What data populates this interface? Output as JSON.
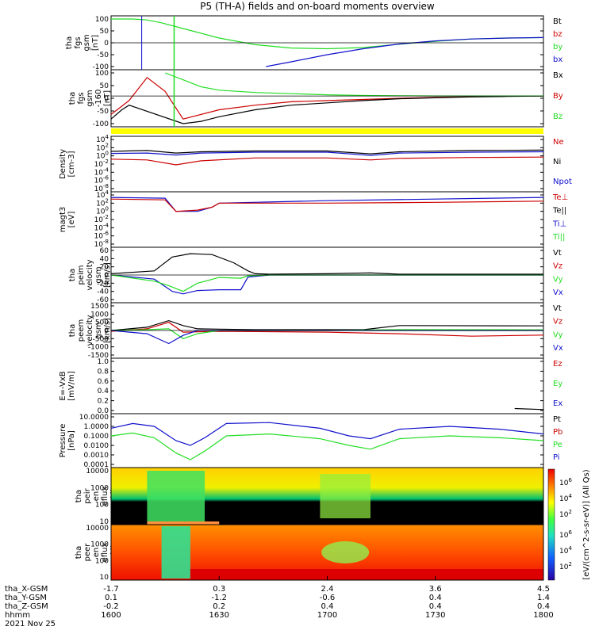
{
  "title": "P5 (TH-A) fields and on-board moments overview",
  "colors": {
    "black": "#000000",
    "red": "#cc0000",
    "green": "#22dd22",
    "blue": "#1010cc",
    "yellow": "#ffff00"
  },
  "panels": [
    {
      "id": "fgs_dsl",
      "ylabel_lines": [
        "tha",
        "fgs",
        "gsm",
        "[nT]"
      ],
      "yticks": [
        "100",
        "50",
        "0",
        "-50",
        "-100"
      ],
      "legend": [
        {
          "text": "Bt",
          "color": "black"
        },
        {
          "text": "bz",
          "color": "red"
        },
        {
          "text": "by",
          "color": "green"
        },
        {
          "text": "bx",
          "color": "blue"
        }
      ]
    },
    {
      "id": "fgs_gsm",
      "ylabel_lines": [
        "tha",
        "fgs",
        "gsm",
        "-160",
        "[nT]"
      ],
      "yticks": [
        "100",
        "50",
        "0",
        "-50",
        "-100"
      ],
      "legend": [
        {
          "text": "Bx",
          "color": "black"
        },
        {
          "text": "By",
          "color": "red"
        },
        {
          "text": "Bz",
          "color": "green"
        }
      ]
    },
    {
      "id": "density",
      "ylabel_lines": [
        "Density",
        "[cm-3]"
      ],
      "yticks": [
        "10^4",
        "10^2",
        "10^0",
        "10^-2",
        "10^-4",
        "10^-6",
        "10^-8"
      ],
      "legend": [
        {
          "text": "Ne",
          "color": "red"
        },
        {
          "text": "Ni",
          "color": "black"
        },
        {
          "text": "Npot",
          "color": "blue"
        }
      ]
    },
    {
      "id": "temperature",
      "ylabel_lines": [
        "magt3",
        "[eV]"
      ],
      "yticks": [
        "10^4",
        "10^2",
        "10^0",
        "10^-2",
        "10^-4",
        "10^-6",
        "10^-8"
      ],
      "legend": [
        {
          "text": "Te⊥",
          "color": "red"
        },
        {
          "text": "Te||",
          "color": "black"
        },
        {
          "text": "Ti⊥",
          "color": "blue"
        },
        {
          "text": "Ti||",
          "color": "green"
        }
      ]
    },
    {
      "id": "vel_peim",
      "ylabel_lines": [
        "tha",
        "peim",
        "velocity",
        "gsm",
        "[km/s]"
      ],
      "yticks": [
        "60",
        "40",
        "20",
        "0",
        "-20",
        "-40",
        "-60"
      ],
      "legend": [
        {
          "text": "Vt",
          "color": "black"
        },
        {
          "text": "Vz",
          "color": "red"
        },
        {
          "text": "Vy",
          "color": "green"
        },
        {
          "text": "Vx",
          "color": "blue"
        }
      ]
    },
    {
      "id": "vel_peem",
      "ylabel_lines": [
        "tha",
        "peem",
        "velocity",
        "gsm",
        "[km/s]"
      ],
      "yticks": [
        "1500",
        "1000",
        "500",
        "0",
        "-500",
        "-1000",
        "-1500"
      ],
      "legend": [
        {
          "text": "Vt",
          "color": "black"
        },
        {
          "text": "Vz",
          "color": "red"
        },
        {
          "text": "Vy",
          "color": "green"
        },
        {
          "text": "Vx",
          "color": "blue"
        }
      ]
    },
    {
      "id": "efield",
      "ylabel_lines": [
        "E=-VxB",
        "[mV/m]"
      ],
      "yticks": [
        "1.0",
        "0.8",
        "0.6",
        "0.4",
        "0.2",
        "0.0"
      ],
      "legend": [
        {
          "text": "Ez",
          "color": "red"
        },
        {
          "text": "Ey",
          "color": "green"
        },
        {
          "text": "Ex",
          "color": "blue"
        }
      ]
    },
    {
      "id": "pressure",
      "ylabel_lines": [
        "Pressure",
        "[nPa]"
      ],
      "yticks": [
        "10.0000",
        "1.0000",
        "0.1000",
        "0.0100",
        "0.0010",
        "0.0001"
      ],
      "legend": [
        {
          "text": "Pt",
          "color": "black"
        },
        {
          "text": "Pb",
          "color": "red"
        },
        {
          "text": "Pe",
          "color": "green"
        },
        {
          "text": "Pi",
          "color": "blue"
        }
      ]
    },
    {
      "id": "peir",
      "ylabel_lines": [
        "tha",
        "peir",
        "en",
        "eflux",
        "eV/",
        "(cm2-s-",
        "sr-eV)"
      ],
      "yticks": [
        "10000",
        "1000",
        "100",
        "10"
      ],
      "legend": []
    },
    {
      "id": "peer",
      "ylabel_lines": [
        "tha",
        "peer",
        "en",
        "eflux",
        "eV/",
        "(cm2-s-",
        "sr-eV)"
      ],
      "yticks": [
        "10000",
        "1000",
        "100",
        "10"
      ],
      "legend": []
    }
  ],
  "colorbar": {
    "label": "[eV/(cm^2-s-sr-eV)] (All Qs)",
    "ticks_upper": [
      "10^6",
      "10^4",
      "10^2"
    ],
    "ticks_lower": [
      "10^6",
      "10^4",
      "10^2"
    ]
  },
  "xaxis": {
    "rows": [
      {
        "label": "tha_X-GSM",
        "values": [
          "-1.7",
          "0.3",
          "2.4",
          "3.6",
          "4.5"
        ]
      },
      {
        "label": "tha_Y-GSM",
        "values": [
          "0.1",
          "-1.2",
          "-0.6",
          "0.4",
          "1.4"
        ]
      },
      {
        "label": "tha_Z-GSM",
        "values": [
          "-0.2",
          "0.2",
          "0.4",
          "0.4",
          "0.4"
        ]
      },
      {
        "label": "hhmm",
        "values": [
          "1600",
          "1630",
          "1700",
          "1730",
          "1800"
        ]
      }
    ],
    "date": "2021 Nov 25"
  },
  "chart_data": {
    "type": "line",
    "title": "P5 (TH-A) fields and on-board moments overview",
    "time_ticks": [
      "1600",
      "1630",
      "1700",
      "1730",
      "1800"
    ],
    "panels": [
      {
        "name": "fgs",
        "ylim": [
          -100,
          100
        ],
        "series": [
          {
            "name": "by",
            "x": [
              0,
              6,
              10,
              14,
              20,
              30,
              40,
              50,
              60,
              70,
              80,
              90,
              100,
              110,
              120
            ],
            "y": [
              100,
              100,
              96,
              84,
              60,
              20,
              -8,
              -22,
              -25,
              -20,
              -6,
              6,
              16,
              20,
              22
            ]
          },
          {
            "name": "bx",
            "x": [
              43,
              50,
              60,
              70,
              80,
              90,
              100,
              110,
              120
            ],
            "y": [
              -100,
              -80,
              -50,
              -25,
              -5,
              8,
              16,
              20,
              22
            ]
          }
        ]
      },
      {
        "name": "fgs_gsm",
        "ylim": [
          -120,
          100
        ],
        "series": [
          {
            "name": "By",
            "x": [
              0,
              5,
              10,
              15,
              20,
              30,
              40,
              50,
              60,
              70,
              80,
              90,
              100,
              110,
              120
            ],
            "y": [
              -80,
              -20,
              80,
              20,
              -100,
              -60,
              -40,
              -25,
              -20,
              -15,
              -10,
              -6,
              -3,
              -1,
              0
            ]
          },
          {
            "name": "Bx",
            "x": [
              0,
              3,
              5,
              20,
              25,
              30,
              40,
              50,
              60,
              70,
              80,
              90,
              100,
              110,
              120
            ],
            "y": [
              -100,
              -60,
              -40,
              -120,
              -110,
              -90,
              -60,
              -40,
              -30,
              -20,
              -12,
              -8,
              -4,
              -2,
              0
            ]
          },
          {
            "name": "Bz",
            "x": [
              15,
              20,
              25,
              30,
              40,
              50,
              60,
              70,
              80,
              90,
              100,
              110,
              120
            ],
            "y": [
              100,
              70,
              40,
              25,
              15,
              10,
              5,
              2,
              1,
              0,
              0,
              0,
              0
            ]
          }
        ]
      },
      {
        "name": "density",
        "ylim_log10": [
          -8,
          4
        ],
        "series": [
          {
            "name": "Ni",
            "x": [
              0,
              10,
              18,
              25,
              40,
              60,
              72,
              80,
              100,
              120
            ],
            "y_log10": [
              1.1,
              1.3,
              0.7,
              1.0,
              1.2,
              1.2,
              0.5,
              1.0,
              1.3,
              1.4
            ]
          },
          {
            "name": "Ne",
            "x": [
              0,
              10,
              18,
              25,
              40,
              60,
              72,
              80,
              100,
              120
            ],
            "y_log10": [
              -0.8,
              -1.0,
              -2.2,
              -1.2,
              -0.5,
              -0.5,
              -1.0,
              -0.6,
              -0.4,
              -0.3
            ]
          },
          {
            "name": "Npot",
            "x": [
              0,
              10,
              18,
              25,
              40,
              60,
              72,
              80,
              100,
              120
            ],
            "y_log10": [
              0.6,
              0.7,
              0.2,
              0.7,
              0.9,
              0.9,
              0.1,
              0.7,
              0.9,
              1.0
            ]
          }
        ]
      },
      {
        "name": "temperature",
        "ylim_log10": [
          -8,
          4
        ],
        "series": [
          {
            "name": "Ti⊥",
            "x": [
              0,
              15,
              18,
              24,
              28,
              30,
              60,
              90,
              120
            ],
            "y_log10": [
              3.4,
              3.2,
              0.0,
              0.0,
              1.0,
              2.0,
              2.6,
              3.0,
              3.4
            ]
          },
          {
            "name": "Te⊥",
            "x": [
              0,
              15,
              18,
              24,
              28,
              30,
              60,
              90,
              120
            ],
            "y_log10": [
              3.0,
              2.8,
              0.0,
              0.3,
              1.0,
              2.0,
              2.0,
              2.2,
              2.5
            ]
          }
        ]
      },
      {
        "name": "vel_peim",
        "ylim": [
          -60,
          60
        ],
        "series": [
          {
            "name": "Vt",
            "x": [
              0,
              12,
              17,
              22,
              28,
              34,
              38,
              40,
              44,
              60,
              72,
              80,
              120
            ],
            "y": [
              3,
              10,
              44,
              52,
              50,
              30,
              10,
              3,
              2,
              3,
              5,
              2,
              2
            ]
          },
          {
            "name": "Vx",
            "x": [
              0,
              12,
              17,
              20,
              24,
              30,
              36,
              38,
              44,
              120
            ],
            "y": [
              0,
              -10,
              -40,
              -46,
              -38,
              -36,
              -36,
              -5,
              0,
              0
            ]
          },
          {
            "name": "Vy",
            "x": [
              0,
              12,
              16,
              20,
              24,
              30,
              36,
              38,
              44,
              120
            ],
            "y": [
              0,
              -15,
              -26,
              -40,
              -20,
              -6,
              -8,
              -2,
              0,
              0
            ]
          }
        ]
      },
      {
        "name": "vel_peem",
        "ylim": [
          -1500,
          1500
        ],
        "series": [
          {
            "name": "Vt",
            "x": [
              0,
              10,
              16,
              20,
              24,
              30,
              40,
              70,
              80,
              120
            ],
            "y": [
              0,
              200,
              600,
              300,
              100,
              80,
              50,
              50,
              300,
              280
            ]
          },
          {
            "name": "Vz",
            "x": [
              0,
              10,
              16,
              20,
              30,
              60,
              80,
              100,
              120
            ],
            "y": [
              -50,
              100,
              500,
              -100,
              -50,
              -100,
              -200,
              -350,
              -280
            ]
          },
          {
            "name": "Vy",
            "x": [
              0,
              10,
              16,
              20,
              24,
              30,
              60,
              80,
              120
            ],
            "y": [
              0,
              50,
              100,
              -500,
              -200,
              0,
              0,
              50,
              40
            ]
          },
          {
            "name": "Vx",
            "x": [
              0,
              10,
              16,
              20,
              24,
              30,
              120
            ],
            "y": [
              0,
              -200,
              -800,
              -300,
              0,
              0,
              0
            ]
          }
        ]
      },
      {
        "name": "efield",
        "ylim": [
          0,
          1
        ],
        "series": [
          {
            "name": "Ex",
            "x": [
              112,
              120
            ],
            "y": [
              0.04,
              0.02
            ]
          }
        ]
      },
      {
        "name": "pressure",
        "ylim_log10": [
          -4,
          1
        ],
        "series": [
          {
            "name": "Pi",
            "x": [
              0,
              6,
              12,
              18,
              22,
              26,
              32,
              44,
              58,
              66,
              72,
              80,
              94,
              108,
              120
            ],
            "y_log10": [
              -0.2,
              0.3,
              0.0,
              -1.5,
              -2.0,
              -1.2,
              0.3,
              0.4,
              -0.2,
              -1.0,
              -1.3,
              -0.3,
              0.0,
              -0.3,
              -0.8
            ]
          },
          {
            "name": "Pe",
            "x": [
              0,
              6,
              12,
              18,
              22,
              26,
              32,
              44,
              58,
              66,
              72,
              80,
              94,
              108,
              120
            ],
            "y_log10": [
              -1.0,
              -0.7,
              -1.2,
              -2.8,
              -3.5,
              -2.6,
              -1.0,
              -0.8,
              -1.3,
              -2.0,
              -2.4,
              -1.3,
              -1.0,
              -1.2,
              -1.5
            ]
          }
        ]
      }
    ]
  }
}
